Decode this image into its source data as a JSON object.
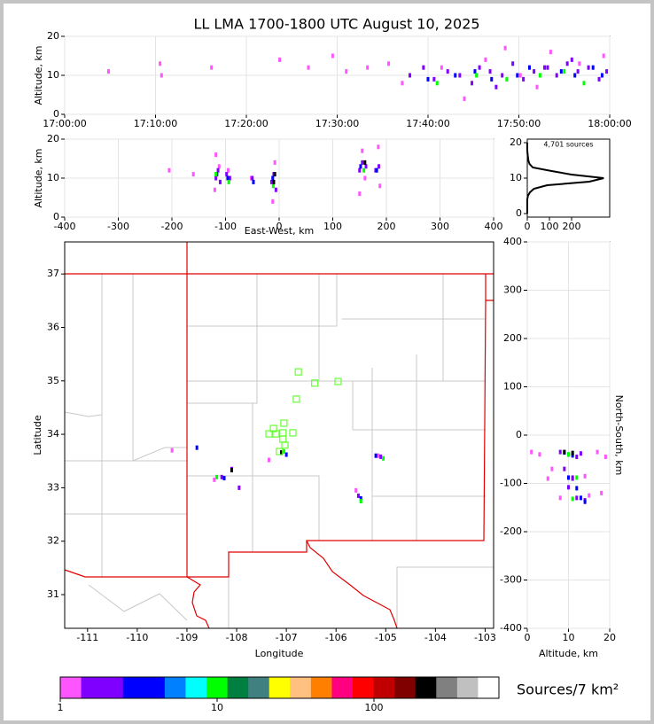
{
  "chart_data": [
    {
      "type": "scatter",
      "title": "LL LMA 1700-1800 UTC August 10, 2025",
      "ylabel": "Altitude, km",
      "xlim": [
        "17:00:00",
        "18:00:00"
      ],
      "ylim": [
        0,
        20
      ],
      "xticks": [
        "17:00:00",
        "17:10:00",
        "17:20:00",
        "17:30:00",
        "17:40:00",
        "17:50:00",
        "18:00:00"
      ],
      "yticks": [
        0,
        10,
        20
      ],
      "grid": true,
      "series": [
        {
          "color": "#ff55ff",
          "x": [
            "17:04:50",
            "17:10:30",
            "17:10:40",
            "17:16:10",
            "17:23:40",
            "17:26:50",
            "17:29:30",
            "17:31:00",
            "17:33:20",
            "17:35:40",
            "17:37:10",
            "17:41:30",
            "17:46:20",
            "17:50:10",
            "17:53:30",
            "17:56:40",
            "17:59:20",
            "17:44:00",
            "17:48:30",
            "17:52:00"
          ],
          "y": [
            11,
            13,
            10,
            12,
            14,
            12,
            15,
            11,
            12,
            13,
            8,
            12,
            14,
            10,
            16,
            13,
            15,
            4,
            17,
            7
          ]
        },
        {
          "color": "#8000ff",
          "x": [
            "17:38:00",
            "17:39:30",
            "17:40:40",
            "17:42:10",
            "17:43:30",
            "17:44:50",
            "17:45:40",
            "17:46:50",
            "17:48:10",
            "17:49:20",
            "17:50:30",
            "17:51:40",
            "17:52:50",
            "17:54:10",
            "17:55:20",
            "17:56:30",
            "17:57:40",
            "17:58:50",
            "17:59:40",
            "17:47:30",
            "17:53:10",
            "17:55:50"
          ],
          "y": [
            10,
            12,
            9,
            11,
            10,
            8,
            12,
            11,
            10,
            13,
            9,
            11,
            12,
            10,
            13,
            11,
            12,
            9,
            11,
            7,
            12,
            14
          ]
        },
        {
          "color": "#0000ff",
          "x": [
            "17:40:00",
            "17:43:00",
            "17:45:10",
            "17:47:00",
            "17:49:50",
            "17:51:10",
            "17:54:40",
            "17:56:10",
            "17:58:10",
            "17:59:10"
          ],
          "y": [
            9,
            10,
            11,
            9,
            10,
            12,
            11,
            10,
            12,
            10
          ]
        },
        {
          "color": "#00ff00",
          "x": [
            "17:41:00",
            "17:45:20",
            "17:48:40",
            "17:52:20",
            "17:55:00",
            "17:57:10"
          ],
          "y": [
            8,
            10,
            9,
            10,
            11,
            8
          ]
        }
      ]
    },
    {
      "type": "scatter",
      "xlabel": "East-West, km",
      "ylabel": "Altitude, km",
      "xlim": [
        -400,
        400
      ],
      "ylim": [
        0,
        20
      ],
      "xticks": [
        -400,
        -300,
        -200,
        -100,
        0,
        100,
        200,
        300,
        400
      ],
      "yticks": [
        0,
        10,
        20
      ],
      "grid": true,
      "series": [
        {
          "color": "#ff55ff",
          "x": [
            -205,
            -160,
            -118,
            -120,
            -112,
            -95,
            -52,
            -12,
            -8,
            155,
            160,
            185,
            150,
            188
          ],
          "y": [
            12,
            11,
            16,
            7,
            13,
            12,
            10,
            4,
            14,
            17,
            10,
            18,
            6,
            8
          ]
        },
        {
          "color": "#8000ff",
          "x": [
            -118,
            -114,
            -110,
            -98,
            -92,
            -50,
            -14,
            -10,
            -6,
            150,
            155,
            162,
            180,
            186
          ],
          "y": [
            10,
            12,
            9,
            11,
            10,
            10,
            9,
            11,
            7,
            12,
            14,
            13,
            12,
            13
          ]
        },
        {
          "color": "#0000ff",
          "x": [
            -116,
            -96,
            -48,
            -12,
            152,
            182
          ],
          "y": [
            11,
            10,
            9,
            10,
            13,
            12
          ]
        },
        {
          "color": "#00ff00",
          "x": [
            -118,
            -94,
            -11,
            158
          ],
          "y": [
            11,
            9,
            8,
            12
          ]
        },
        {
          "color": "#000000",
          "x": [
            -10,
            -8,
            160
          ],
          "y": [
            9,
            11,
            14
          ]
        }
      ]
    },
    {
      "type": "line",
      "orientation": "horizontal",
      "annotation": "4,701 sources",
      "color": "#000000",
      "xlim": [
        0,
        372
      ],
      "ylim": [
        -1,
        21
      ],
      "xticks": [
        0,
        100,
        200
      ],
      "yticks": [
        0,
        10,
        20
      ],
      "grid": false,
      "y": [
        0,
        1,
        2,
        3,
        4,
        5,
        6,
        7,
        8,
        9,
        10,
        11,
        12,
        13,
        14,
        15,
        16,
        17,
        18,
        19,
        20
      ],
      "values": [
        0,
        0,
        0,
        0,
        0,
        3,
        12,
        30,
        90,
        280,
        345,
        200,
        110,
        25,
        10,
        5,
        3,
        1,
        0,
        0,
        0
      ]
    },
    {
      "type": "scatter",
      "xlabel": "Longitude",
      "ylabel": "Latitude",
      "xlim": [
        -111.46,
        -102.83
      ],
      "ylim": [
        30.37,
        37.6
      ],
      "xticks": [
        -111,
        -110,
        -109,
        -108,
        -107,
        -106,
        -105,
        -104,
        -103
      ],
      "yticks": [
        31,
        32,
        33,
        34,
        35,
        36,
        37
      ],
      "grid": false,
      "series": [
        {
          "color": "#ff55ff",
          "x": [
            -109.3,
            -108.45,
            -107.35,
            -105.6,
            -105.15
          ],
          "y": [
            33.7,
            33.15,
            33.52,
            32.95,
            33.6
          ]
        },
        {
          "color": "#8000ff",
          "x": [
            -108.3,
            -108.1,
            -107.1,
            -105.55,
            -105.1,
            -107.95
          ],
          "y": [
            33.2,
            33.35,
            33.65,
            32.85,
            33.58,
            33.0
          ]
        },
        {
          "color": "#0000ff",
          "x": [
            -108.8,
            -108.25,
            -107.0,
            -105.2,
            -105.5
          ],
          "y": [
            33.75,
            33.18,
            33.62,
            33.6,
            32.8
          ]
        },
        {
          "color": "#00ff00",
          "x": [
            -108.4,
            -107.05,
            -105.05,
            -105.5
          ],
          "y": [
            33.2,
            33.68,
            33.55,
            32.75
          ]
        },
        {
          "color": "#000000",
          "x": [
            -108.1,
            -107.1
          ],
          "y": [
            33.33,
            33.66
          ]
        },
        {
          "color": "#66ff33",
          "marker": "square",
          "x": [
            -106.75,
            -106.42,
            -105.95,
            -106.79,
            -107.04,
            -107.25,
            -107.34,
            -107.2,
            -107.06,
            -106.86,
            -107.06,
            -107.02,
            -107.13
          ],
          "y": [
            35.16,
            34.95,
            34.98,
            34.65,
            34.2,
            34.1,
            34.0,
            34.0,
            34.02,
            34.02,
            33.9,
            33.79,
            33.67
          ]
        }
      ]
    },
    {
      "type": "scatter",
      "xlabel": "Altitude, km",
      "ylabel": "North-South, km",
      "xlim": [
        0,
        20
      ],
      "ylim": [
        -400,
        400
      ],
      "xticks": [
        0,
        10,
        20
      ],
      "yticks": [
        -400,
        -300,
        -200,
        -100,
        0,
        100,
        200,
        300,
        400
      ],
      "grid": true,
      "series": [
        {
          "color": "#ff55ff",
          "x": [
            1,
            3,
            5,
            17,
            19,
            8,
            15,
            6,
            14,
            18
          ],
          "y": [
            -35,
            -40,
            -90,
            -35,
            -45,
            -130,
            -125,
            -70,
            -85,
            -120
          ]
        },
        {
          "color": "#8000ff",
          "x": [
            8,
            10,
            12,
            13,
            9,
            11,
            10,
            12,
            14,
            11
          ],
          "y": [
            -35,
            -40,
            -45,
            -38,
            -70,
            -88,
            -108,
            -130,
            -135,
            -90
          ]
        },
        {
          "color": "#0000ff",
          "x": [
            9,
            11,
            13,
            10,
            12,
            14
          ],
          "y": [
            -36,
            -42,
            -130,
            -88,
            -110,
            -138
          ]
        },
        {
          "color": "#00ff00",
          "x": [
            10,
            12,
            11
          ],
          "y": [
            -40,
            -88,
            -132
          ]
        },
        {
          "color": "#000000",
          "x": [
            9,
            11
          ],
          "y": [
            -35,
            -37
          ]
        }
      ]
    },
    {
      "type": "colorbar",
      "label": "Sources/7 km²",
      "log": true,
      "xlim": [
        1,
        626
      ],
      "xticks": [
        1,
        10,
        100
      ],
      "colors": [
        "#ff55ff",
        "#8000ff",
        "#8000ff",
        "#0000ff",
        "#0000ff",
        "#0080ff",
        "#00ffff",
        "#00ff00",
        "#008040",
        "#408080",
        "#ffff00",
        "#ffc080",
        "#ff8000",
        "#ff0080",
        "#ff0000",
        "#c00000",
        "#800000",
        "#000000",
        "#808080",
        "#c0c0c0",
        "#ffffff"
      ]
    }
  ]
}
